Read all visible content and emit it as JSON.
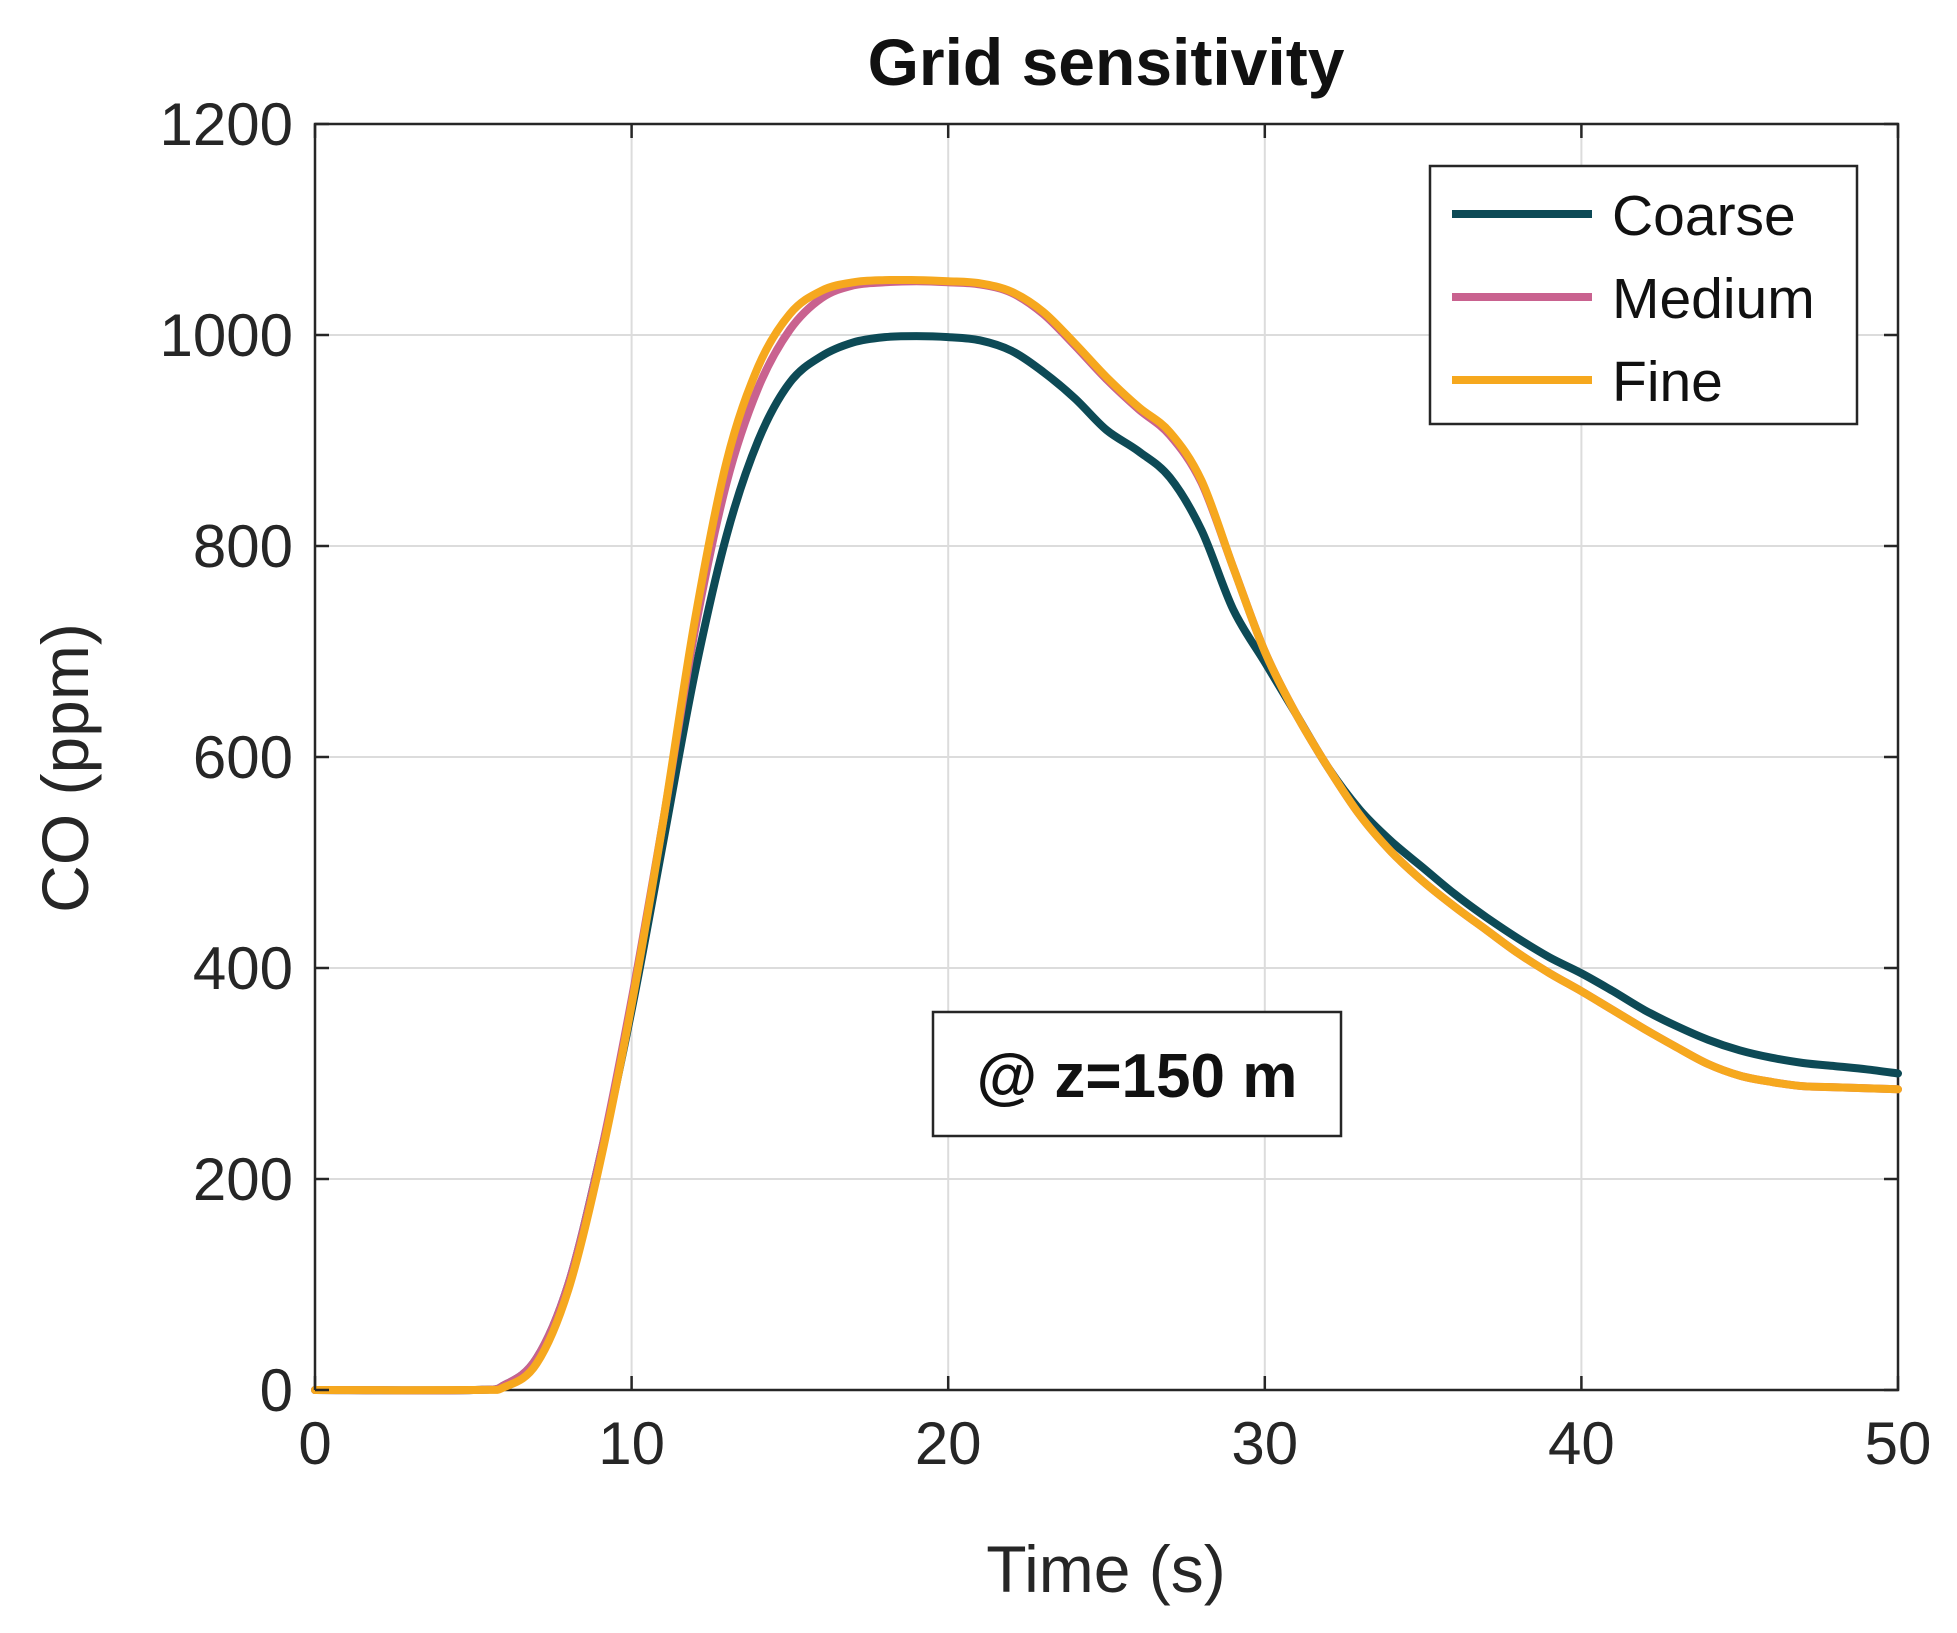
{
  "chart_data": {
    "type": "line",
    "title": "Grid sensitivity",
    "xlabel": "Time (s)",
    "ylabel": "CO (ppm)",
    "xlim": [
      0,
      50
    ],
    "ylim": [
      0,
      1200
    ],
    "xticks": [
      0,
      10,
      20,
      30,
      40,
      50
    ],
    "yticks": [
      0,
      200,
      400,
      600,
      800,
      1000,
      1200
    ],
    "grid": true,
    "legend_position": "top-right",
    "annotation": "@ z=150 m",
    "series": [
      {
        "name": "Coarse",
        "color": "#0d4a56",
        "x": [
          0,
          5,
          6,
          7,
          8,
          9,
          10,
          11,
          12,
          13,
          14,
          15,
          16,
          17,
          18,
          19,
          20,
          21,
          22,
          23,
          24,
          25,
          26,
          27,
          28,
          29,
          30,
          31,
          32,
          33,
          34,
          35,
          36,
          37,
          38,
          39,
          40,
          41,
          42,
          43,
          44,
          45,
          46,
          47,
          48,
          49,
          50
        ],
        "y": [
          0,
          0,
          5,
          30,
          100,
          220,
          360,
          520,
          680,
          810,
          900,
          955,
          980,
          993,
          998,
          999,
          998,
          995,
          985,
          965,
          940,
          910,
          890,
          865,
          815,
          740,
          690,
          640,
          590,
          550,
          520,
          495,
          470,
          448,
          428,
          410,
          395,
          378,
          360,
          345,
          332,
          322,
          315,
          310,
          307,
          304,
          300
        ]
      },
      {
        "name": "Medium",
        "color": "#c9628f",
        "x": [
          0,
          5,
          6,
          7,
          8,
          9,
          10,
          11,
          12,
          13,
          14,
          15,
          16,
          17,
          18,
          19,
          20,
          21,
          22,
          23,
          24,
          25,
          26,
          27,
          28,
          29,
          30,
          31,
          32,
          33,
          34,
          35,
          36,
          37,
          38,
          39,
          40,
          41,
          42,
          43,
          44,
          45,
          46,
          47,
          48,
          49,
          50
        ],
        "y": [
          0,
          0,
          5,
          30,
          100,
          220,
          370,
          540,
          720,
          860,
          950,
          1005,
          1035,
          1047,
          1050,
          1051,
          1050,
          1048,
          1040,
          1020,
          990,
          958,
          930,
          905,
          860,
          780,
          700,
          640,
          590,
          545,
          510,
          482,
          458,
          436,
          414,
          395,
          378,
          360,
          342,
          325,
          309,
          298,
          292,
          288,
          287,
          286,
          285
        ]
      },
      {
        "name": "Fine",
        "color": "#f6a81e",
        "x": [
          0,
          5,
          6,
          7,
          8,
          9,
          10,
          11,
          12,
          13,
          14,
          15,
          16,
          17,
          18,
          19,
          20,
          21,
          22,
          23,
          24,
          25,
          26,
          27,
          28,
          29,
          30,
          31,
          32,
          33,
          34,
          35,
          36,
          37,
          38,
          39,
          40,
          41,
          42,
          43,
          44,
          45,
          46,
          47,
          48,
          49,
          50
        ],
        "y": [
          0,
          0,
          3,
          25,
          95,
          215,
          365,
          540,
          730,
          880,
          970,
          1020,
          1042,
          1050,
          1052,
          1052,
          1051,
          1049,
          1041,
          1022,
          992,
          960,
          932,
          908,
          862,
          780,
          700,
          640,
          590,
          545,
          510,
          482,
          458,
          436,
          414,
          395,
          378,
          360,
          342,
          325,
          309,
          298,
          292,
          288,
          287,
          286,
          285
        ]
      }
    ]
  }
}
